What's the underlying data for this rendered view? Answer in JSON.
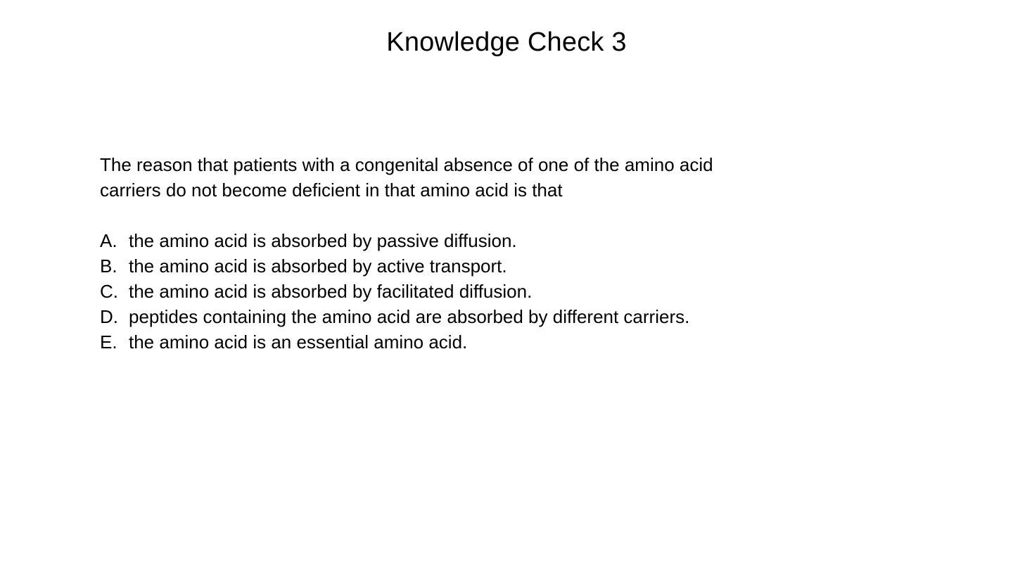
{
  "slide": {
    "title": "Knowledge Check 3",
    "question": "The reason that patients with a congenital absence of one of the amino acid carriers do not become deficient in that amino acid is that",
    "options": [
      {
        "letter": "A.",
        "text": "the amino acid is absorbed by passive diffusion."
      },
      {
        "letter": "B.",
        "text": "the amino acid is absorbed by active transport."
      },
      {
        "letter": "C.",
        "text": "the amino acid is absorbed by facilitated diffusion."
      },
      {
        "letter": "D.",
        "text": "peptides containing the amino acid are absorbed by different carriers."
      },
      {
        "letter": "E.",
        "text": "the amino acid is an essential amino acid."
      }
    ]
  },
  "colors": {
    "background": "#ffffff",
    "text": "#000000"
  }
}
